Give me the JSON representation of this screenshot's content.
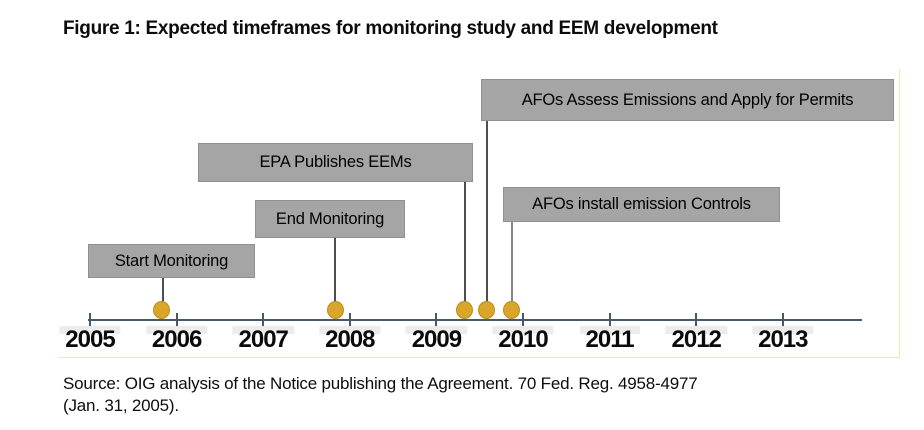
{
  "page": {
    "title": "Figure 1: Expected timeframes for monitoring study and EEM development",
    "source": {
      "line1": "Source: OIG analysis of the Notice publishing the Agreement. 70 Fed. Reg. 4958-4977",
      "line2": "(Jan. 31, 2005)."
    }
  },
  "chart_data": {
    "type": "timeline",
    "title": "Figure 1: Expected timeframes for monitoring study and EEM development",
    "x_axis": {
      "tick_labels": [
        "2005",
        "2006",
        "2007",
        "2008",
        "2009",
        "2010",
        "2011",
        "2012",
        "2013"
      ],
      "range": [
        2005,
        2013.9
      ],
      "grid": "off"
    },
    "legend": "none",
    "events": [
      {
        "label": "Start Monitoring",
        "year": 2005.83
      },
      {
        "label": "End Monitoring",
        "year": 2007.83
      },
      {
        "label": "EPA Publishes EEMs",
        "year": 2009.33
      },
      {
        "label": "AFOs Assess Emissions and Apply for Permits",
        "year": 2009.58
      },
      {
        "label": "AFOs install emission Controls",
        "year": 2009.87
      }
    ],
    "colors": {
      "marker_fill": "#D9A62A",
      "marker_edge": "#BA8F1E",
      "event_box_fill": "#A5A5A5",
      "event_box_edge": "#909090",
      "axis_line": "#44586E",
      "connector": "#4F4F4F",
      "frame_border": "#F2EE9C",
      "year_highlight": "#ECECEC"
    }
  }
}
